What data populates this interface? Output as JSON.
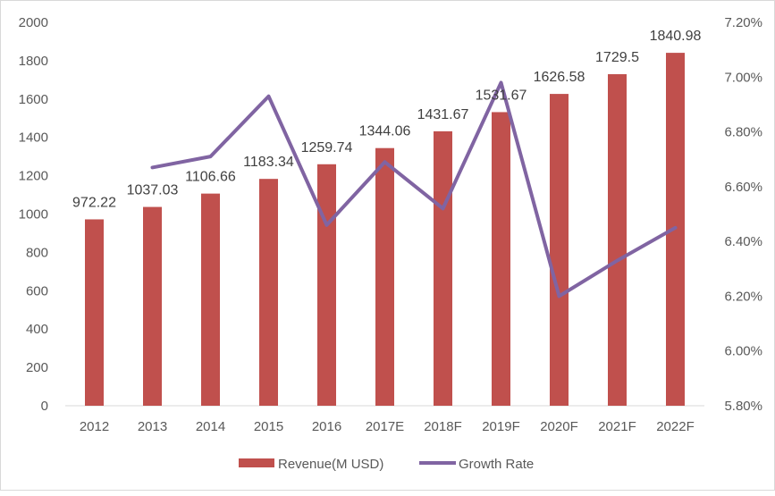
{
  "chart_data": {
    "type": "bar+line",
    "categories": [
      "2012",
      "2013",
      "2014",
      "2015",
      "2016",
      "2017E",
      "2018F",
      "2019F",
      "2020F",
      "2021F",
      "2022F"
    ],
    "series": [
      {
        "name": "Revenue(M USD)",
        "type": "bar",
        "axis": "left",
        "color": "#C0504D",
        "values": [
          972.22,
          1037.03,
          1106.66,
          1183.34,
          1259.74,
          1344.06,
          1431.67,
          1531.67,
          1626.58,
          1729.5,
          1840.98
        ],
        "labels": [
          "972.22",
          "1037.03",
          "1106.66",
          "1183.34",
          "1259.74",
          "1344.06",
          "1431.67",
          "1531.67",
          "1626.58",
          "1729.5",
          "1840.98"
        ]
      },
      {
        "name": "Growth Rate",
        "type": "line",
        "axis": "right",
        "color": "#8064A2",
        "values": [
          null,
          6.67,
          6.71,
          6.93,
          6.46,
          6.69,
          6.52,
          6.98,
          6.2,
          6.33,
          6.45
        ]
      }
    ],
    "left_axis": {
      "ylim": [
        0,
        2000
      ],
      "ticks": [
        "0",
        "200",
        "400",
        "600",
        "800",
        "1000",
        "1200",
        "1400",
        "1600",
        "1800",
        "2000"
      ]
    },
    "right_axis": {
      "ylim": [
        5.8,
        7.2
      ],
      "ticks": [
        "5.80%",
        "6.00%",
        "6.20%",
        "6.40%",
        "6.60%",
        "6.80%",
        "7.00%",
        "7.20%"
      ]
    },
    "legend": {
      "placement": "bottom",
      "entries": [
        "Revenue(M USD)",
        "Growth Rate"
      ]
    },
    "grid": false
  }
}
